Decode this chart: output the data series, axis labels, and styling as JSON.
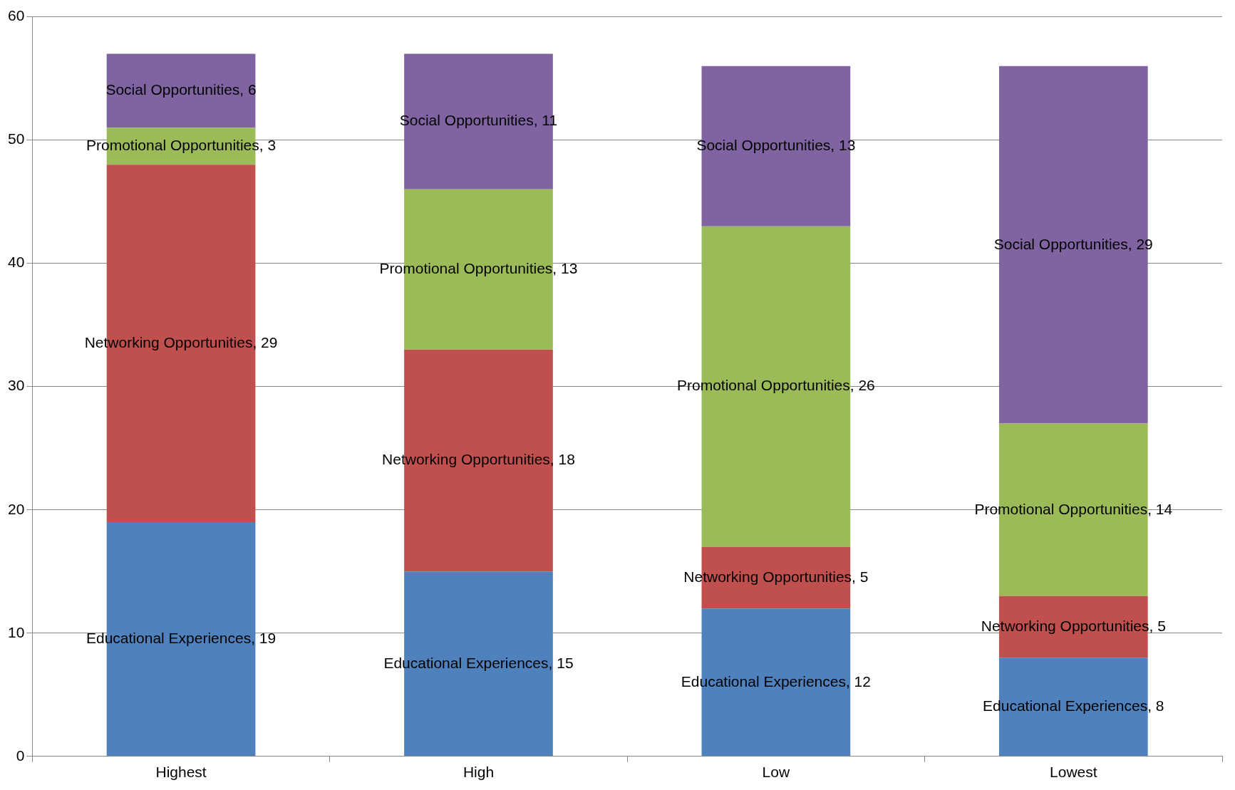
{
  "chart_data": {
    "type": "bar",
    "stacked": true,
    "categories": [
      "Highest",
      "High",
      "Low",
      "Lowest"
    ],
    "series": [
      {
        "color": "#4f81bd",
        "values": [
          19,
          15,
          12,
          8
        ],
        "value_labels": [
          "Educational Experiences, 19",
          "Educational Experiences, 15",
          "Educational Experiences, 12",
          "Educational Experiences, 8"
        ]
      },
      {
        "color": "#c0504d",
        "values": [
          29,
          18,
          5,
          5
        ],
        "value_labels": [
          "Networking Opportunities, 29",
          "Networking Opportunities, 18",
          "Networking Opportunities, 5",
          "Networking Opportunities, 5"
        ]
      },
      {
        "color": "#9bbb59",
        "values": [
          3,
          13,
          26,
          14
        ],
        "value_labels": [
          "Promotional Opportunities, 3",
          "Promotional Opportunities, 13",
          "Promotional Opportunities, 26",
          "Promotional Opportunities, 14"
        ]
      },
      {
        "color": "#8064a2",
        "values": [
          6,
          11,
          13,
          29
        ],
        "value_labels": [
          "Social Opportunities, 6",
          "Social Opportunities, 11",
          "Social Opportunities, 13",
          "Social Opportunities, 29"
        ]
      }
    ],
    "ylim": [
      0,
      60
    ],
    "yticks": [
      0,
      10,
      20,
      30,
      40,
      50,
      60
    ],
    "grid": "y",
    "legend": false
  }
}
